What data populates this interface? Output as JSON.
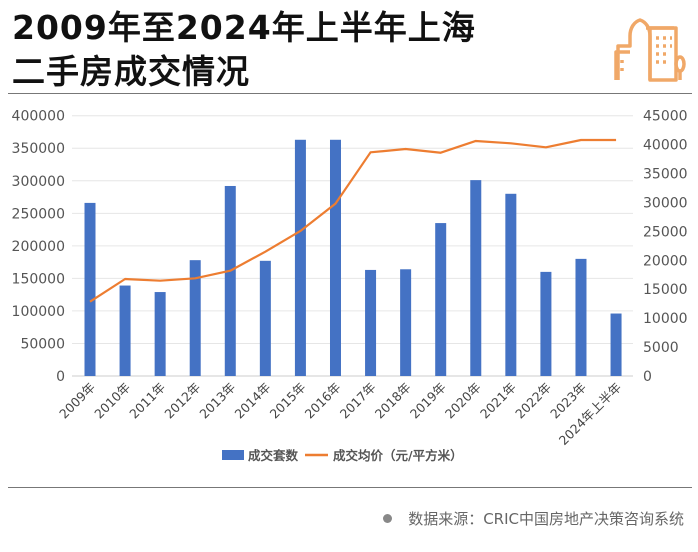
{
  "header": {
    "title_line1": "2009年至2024年上半年上海",
    "title_line2": "二手房成交情况",
    "logo_icon": "city-buildings-icon"
  },
  "footer": {
    "source": "数据来源：CRIC中国房地产决策咨询系统"
  },
  "colors": {
    "bar": "#4472C4",
    "line": "#ED7D31",
    "accent": "#F0A868"
  },
  "chart_data": {
    "type": "bar+line",
    "categories": [
      "2009年",
      "2010年",
      "2011年",
      "2012年",
      "2013年",
      "2014年",
      "2015年",
      "2016年",
      "2017年",
      "2018年",
      "2019年",
      "2020年",
      "2021年",
      "2022年",
      "2023年",
      "2024年上半年"
    ],
    "series": [
      {
        "name": "成交套数",
        "type": "bar",
        "axis": "left",
        "values": [
          266000,
          139000,
          129000,
          178000,
          292000,
          177000,
          363000,
          363000,
          163000,
          164000,
          235000,
          301000,
          280000,
          160000,
          180000,
          96000
        ]
      },
      {
        "name": "成交均价（元/平方米）",
        "type": "line",
        "axis": "right",
        "values": [
          12850,
          16770,
          16480,
          16890,
          18200,
          21490,
          25070,
          29800,
          38670,
          39240,
          38600,
          40630,
          40230,
          39540,
          40800,
          40800
        ]
      }
    ],
    "left_axis": {
      "ylim": [
        0,
        400000
      ],
      "ticks": [
        "0",
        "50000",
        "100000",
        "150000",
        "200000",
        "250000",
        "300000",
        "350000",
        "400000"
      ]
    },
    "right_axis": {
      "ylim": [
        0,
        45000
      ],
      "ticks": [
        "0",
        "5000",
        "10000",
        "15000",
        "20000",
        "25000",
        "30000",
        "35000",
        "40000",
        "45000"
      ]
    },
    "grid": true,
    "legend_position": "bottom"
  }
}
